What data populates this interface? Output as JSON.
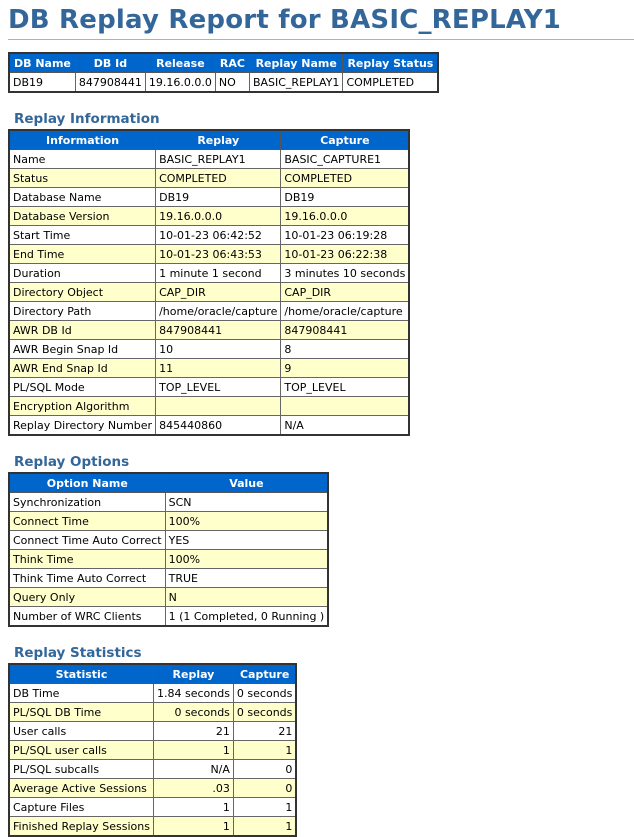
{
  "title": "DB Replay Report for BASIC_REPLAY1",
  "summary": {
    "headers": [
      "DB Name",
      "DB Id",
      "Release",
      "RAC",
      "Replay Name",
      "Replay Status"
    ],
    "rows": [
      [
        "DB19",
        "847908441",
        "19.16.0.0.0",
        "NO",
        "BASIC_REPLAY1",
        "COMPLETED"
      ]
    ]
  },
  "sections": [
    {
      "heading": "Replay Information",
      "headers": [
        "Information",
        "Replay",
        "Capture"
      ],
      "rows": [
        [
          "Name",
          "BASIC_REPLAY1",
          "BASIC_CAPTURE1"
        ],
        [
          "Status",
          "COMPLETED",
          "COMPLETED"
        ],
        [
          "Database Name",
          "DB19",
          "DB19"
        ],
        [
          "Database Version",
          "19.16.0.0.0",
          "19.16.0.0.0"
        ],
        [
          "Start Time",
          "10-01-23 06:42:52",
          "10-01-23 06:19:28"
        ],
        [
          "End Time",
          "10-01-23 06:43:53",
          "10-01-23 06:22:38"
        ],
        [
          "Duration",
          "1 minute 1 second",
          "3 minutes 10 seconds"
        ],
        [
          "Directory Object",
          "CAP_DIR",
          "CAP_DIR"
        ],
        [
          "Directory Path",
          "/home/oracle/capture",
          "/home/oracle/capture"
        ],
        [
          "AWR DB Id",
          "847908441",
          "847908441"
        ],
        [
          "AWR Begin Snap Id",
          "10",
          "8"
        ],
        [
          "AWR End Snap Id",
          "11",
          "9"
        ],
        [
          "PL/SQL Mode",
          "TOP_LEVEL",
          "TOP_LEVEL"
        ],
        [
          "Encryption Algorithm",
          null,
          null
        ],
        [
          "Replay Directory Number",
          "845440860",
          "N/A"
        ]
      ]
    },
    {
      "heading": "Replay Options",
      "headers": [
        "Option Name",
        "Value"
      ],
      "rows": [
        [
          "Synchronization",
          "SCN"
        ],
        [
          "Connect Time",
          "100%"
        ],
        [
          "Connect Time Auto Correct",
          "YES"
        ],
        [
          "Think Time",
          "100%"
        ],
        [
          "Think Time Auto Correct",
          "TRUE"
        ],
        [
          "Query Only",
          "N"
        ],
        [
          "Number of WRC Clients",
          "1 (1 Completed, 0 Running )"
        ]
      ]
    },
    {
      "heading": "Replay Statistics",
      "headers": [
        "Statistic",
        "Replay",
        "Capture"
      ],
      "rows": [
        [
          "DB Time",
          "1.84 seconds",
          "0 seconds"
        ],
        [
          "PL/SQL DB Time",
          "0 seconds",
          "0 seconds"
        ],
        [
          "User calls",
          "21",
          "21"
        ],
        [
          "PL/SQL user calls",
          "1",
          "1"
        ],
        [
          "PL/SQL subcalls",
          "N/A",
          "0"
        ],
        [
          "Average Active Sessions",
          ".03",
          "0"
        ],
        [
          "Capture Files",
          "1",
          "1"
        ],
        [
          "Finished Replay Sessions",
          "1",
          "1"
        ]
      ]
    }
  ]
}
